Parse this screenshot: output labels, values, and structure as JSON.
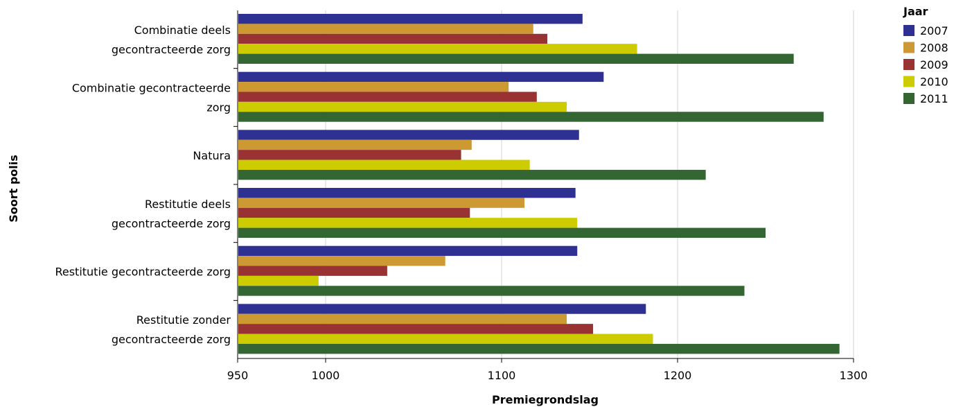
{
  "chart_data": {
    "type": "bar",
    "orientation": "horizontal",
    "categories": [
      [
        "Combinatie deels",
        "gecontracteerde zorg"
      ],
      [
        "Combinatie gecontracteerde",
        "zorg"
      ],
      [
        "Natura"
      ],
      [
        "Restitutie deels",
        "gecontracteerde zorg"
      ],
      [
        "Restitutie gecontracteerde zorg"
      ],
      [
        "Restitutie zonder",
        "gecontracteerde zorg"
      ]
    ],
    "series": [
      {
        "name": "2007",
        "color": "#2e3192",
        "values": [
          1146,
          1158,
          1144,
          1142,
          1143,
          1182
        ]
      },
      {
        "name": "2008",
        "color": "#cc9933",
        "values": [
          1118,
          1104,
          1083,
          1113,
          1068,
          1137
        ]
      },
      {
        "name": "2009",
        "color": "#993333",
        "values": [
          1126,
          1120,
          1077,
          1082,
          1035,
          1152
        ]
      },
      {
        "name": "2010",
        "color": "#cccc00",
        "values": [
          1177,
          1137,
          1116,
          1143,
          996,
          1186
        ]
      },
      {
        "name": "2011",
        "color": "#336633",
        "values": [
          1266,
          1283,
          1216,
          1250,
          1238,
          1292
        ]
      }
    ],
    "xlabel": "Premiegrondslag",
    "ylabel": "Soort polis",
    "xlim": [
      950,
      1300
    ],
    "xticks": [
      950,
      1000,
      1100,
      1200,
      1300
    ],
    "grid": true,
    "legend_title": "Jaar",
    "legend_position": "top-right"
  }
}
